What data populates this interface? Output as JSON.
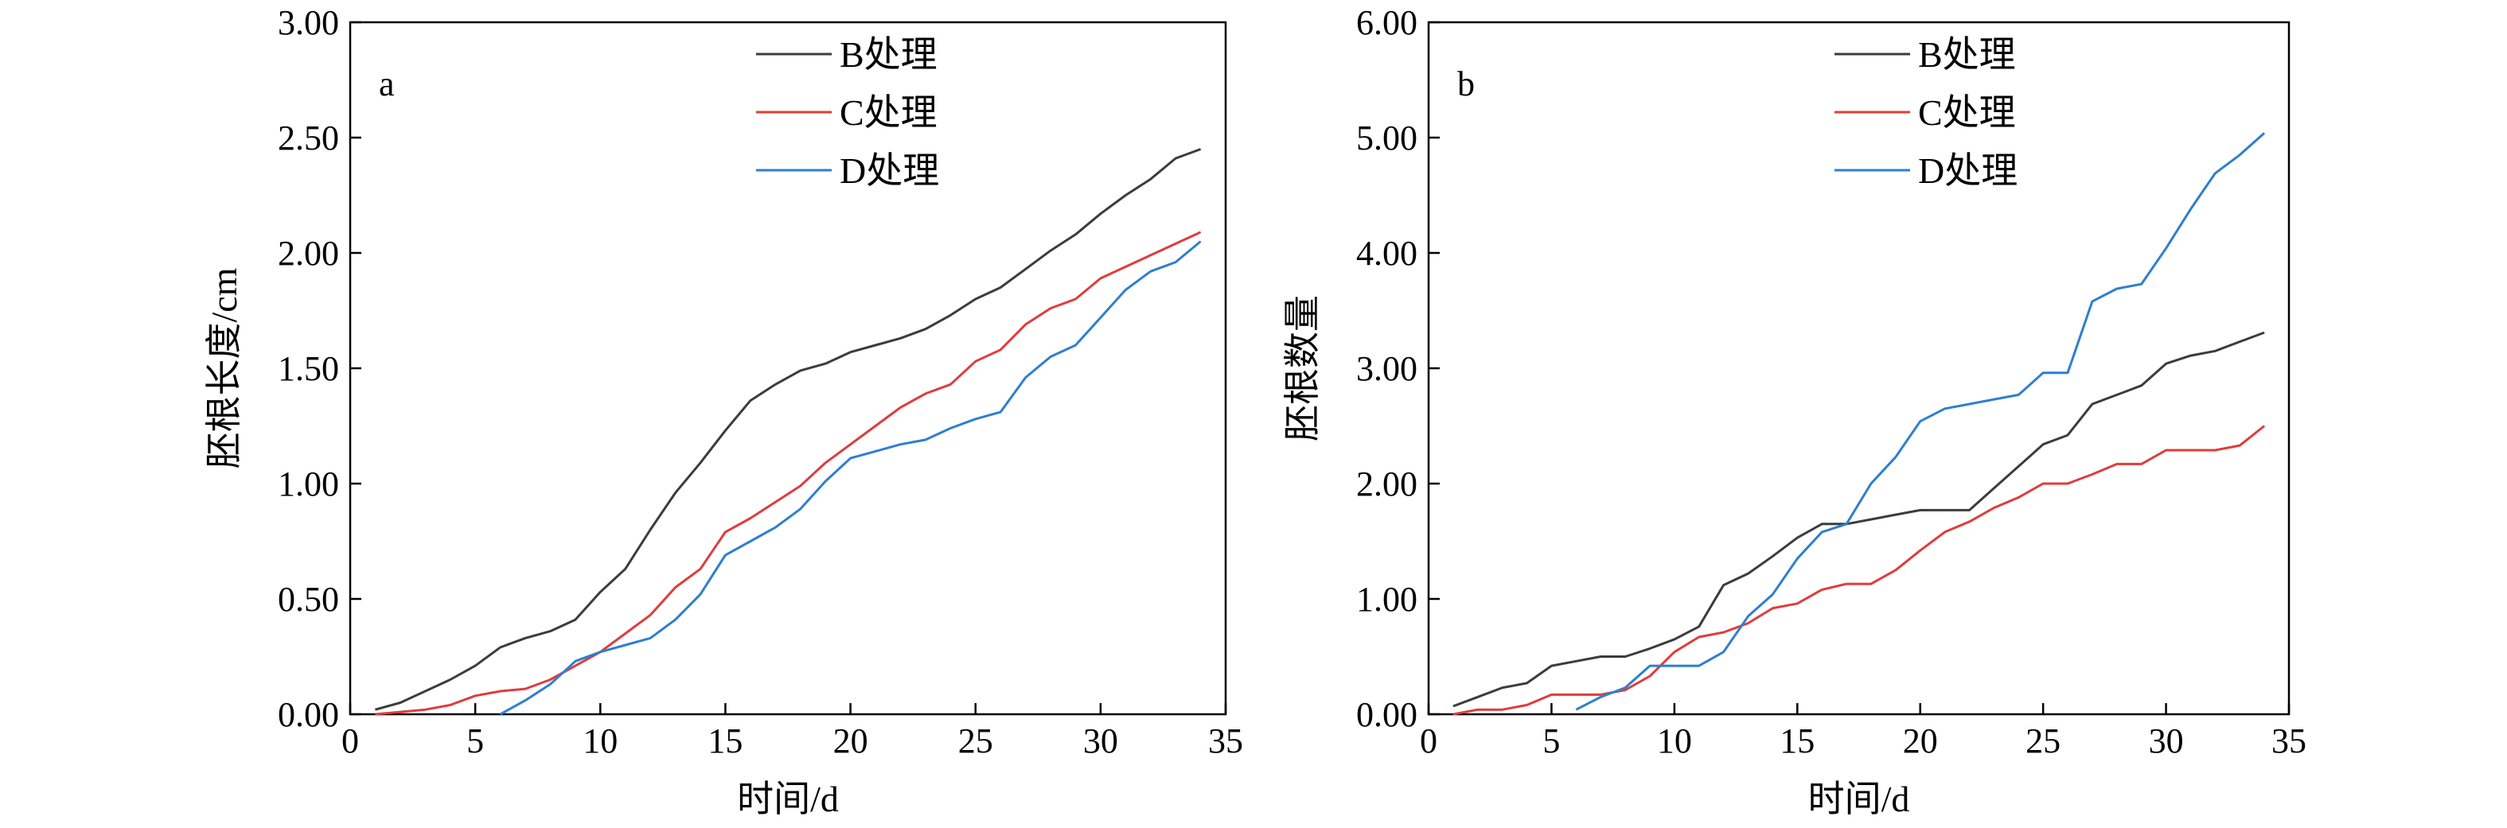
{
  "chart_data": [
    {
      "type": "line",
      "panel_label": "a",
      "xlabel": "时间/d",
      "ylabel": "胚根长度/cm",
      "xlim": [
        0,
        35
      ],
      "ylim": [
        0,
        3.0
      ],
      "x_ticks": [
        "0",
        "5",
        "10",
        "15",
        "20",
        "25",
        "30",
        "35"
      ],
      "y_ticks": [
        "0.00",
        "0.50",
        "1.00",
        "1.50",
        "2.00",
        "2.50",
        "3.00"
      ],
      "grid": false,
      "legend_position": "top-center",
      "x": [
        1,
        2,
        3,
        4,
        5,
        6,
        7,
        8,
        9,
        10,
        11,
        12,
        13,
        14,
        15,
        16,
        17,
        18,
        19,
        20,
        21,
        22,
        23,
        24,
        25,
        26,
        27,
        28,
        29,
        30,
        31,
        32,
        33,
        34
      ],
      "series": [
        {
          "name": "B处理",
          "color": "#3c3c3c",
          "values": [
            0.02,
            0.05,
            0.1,
            0.15,
            0.21,
            0.29,
            0.33,
            0.36,
            0.41,
            0.53,
            0.63,
            0.8,
            0.96,
            1.09,
            1.23,
            1.36,
            1.43,
            1.49,
            1.52,
            1.57,
            1.6,
            1.63,
            1.67,
            1.73,
            1.8,
            1.85,
            1.93,
            2.01,
            2.08,
            2.17,
            2.25,
            2.32,
            2.41,
            2.45
          ]
        },
        {
          "name": "C处理",
          "color": "#e03c3c",
          "values": [
            0.0,
            0.01,
            0.02,
            0.04,
            0.08,
            0.1,
            0.11,
            0.15,
            0.21,
            0.27,
            0.35,
            0.43,
            0.55,
            0.63,
            0.79,
            0.85,
            0.92,
            0.99,
            1.09,
            1.17,
            1.25,
            1.33,
            1.39,
            1.43,
            1.53,
            1.58,
            1.69,
            1.76,
            1.8,
            1.89,
            1.94,
            1.99,
            2.04,
            2.09
          ]
        },
        {
          "name": "D处理",
          "color": "#2e7fcf",
          "values": [
            null,
            null,
            null,
            null,
            null,
            0.0,
            0.06,
            0.13,
            0.23,
            0.27,
            0.3,
            0.33,
            0.41,
            0.52,
            0.69,
            0.75,
            0.81,
            0.89,
            1.01,
            1.11,
            1.14,
            1.17,
            1.19,
            1.24,
            1.28,
            1.31,
            1.46,
            1.55,
            1.6,
            1.72,
            1.84,
            1.92,
            1.96,
            2.05
          ]
        }
      ]
    },
    {
      "type": "line",
      "panel_label": "b",
      "xlabel": "时间/d",
      "ylabel": "胚根数量",
      "xlim": [
        0,
        35
      ],
      "ylim": [
        0,
        6.0
      ],
      "x_ticks": [
        "0",
        "5",
        "10",
        "15",
        "20",
        "25",
        "30",
        "35"
      ],
      "y_ticks": [
        "0.00",
        "1.00",
        "2.00",
        "3.00",
        "4.00",
        "5.00",
        "6.00"
      ],
      "grid": false,
      "legend_position": "top-center",
      "x": [
        1,
        2,
        3,
        4,
        5,
        6,
        7,
        8,
        9,
        10,
        11,
        12,
        13,
        14,
        15,
        16,
        17,
        18,
        19,
        20,
        21,
        22,
        23,
        24,
        25,
        26,
        27,
        28,
        29,
        30,
        31,
        32,
        33,
        34
      ],
      "series": [
        {
          "name": "B处理",
          "color": "#3c3c3c",
          "values": [
            0.07,
            0.15,
            0.23,
            0.27,
            0.42,
            0.46,
            0.5,
            0.5,
            0.57,
            0.65,
            0.76,
            1.12,
            1.22,
            1.37,
            1.53,
            1.65,
            1.65,
            1.69,
            1.73,
            1.77,
            1.77,
            1.77,
            1.96,
            2.15,
            2.34,
            2.42,
            2.69,
            2.77,
            2.85,
            3.04,
            3.11,
            3.15,
            3.23,
            3.31
          ]
        },
        {
          "name": "C处理",
          "color": "#e03c3c",
          "values": [
            0.0,
            0.04,
            0.04,
            0.08,
            0.17,
            0.17,
            0.17,
            0.21,
            0.33,
            0.54,
            0.67,
            0.71,
            0.79,
            0.92,
            0.96,
            1.08,
            1.13,
            1.13,
            1.25,
            1.42,
            1.58,
            1.67,
            1.79,
            1.88,
            2.0,
            2.0,
            2.08,
            2.17,
            2.17,
            2.29,
            2.29,
            2.29,
            2.33,
            2.5
          ]
        },
        {
          "name": "D处理",
          "color": "#2e7fcf",
          "values": [
            null,
            null,
            null,
            null,
            null,
            0.04,
            0.15,
            0.23,
            0.42,
            0.42,
            0.42,
            0.54,
            0.85,
            1.04,
            1.35,
            1.58,
            1.65,
            2.0,
            2.23,
            2.54,
            2.65,
            2.69,
            2.73,
            2.77,
            2.96,
            2.96,
            3.58,
            3.69,
            3.73,
            4.04,
            4.38,
            4.69,
            4.85,
            5.04
          ]
        }
      ]
    }
  ]
}
